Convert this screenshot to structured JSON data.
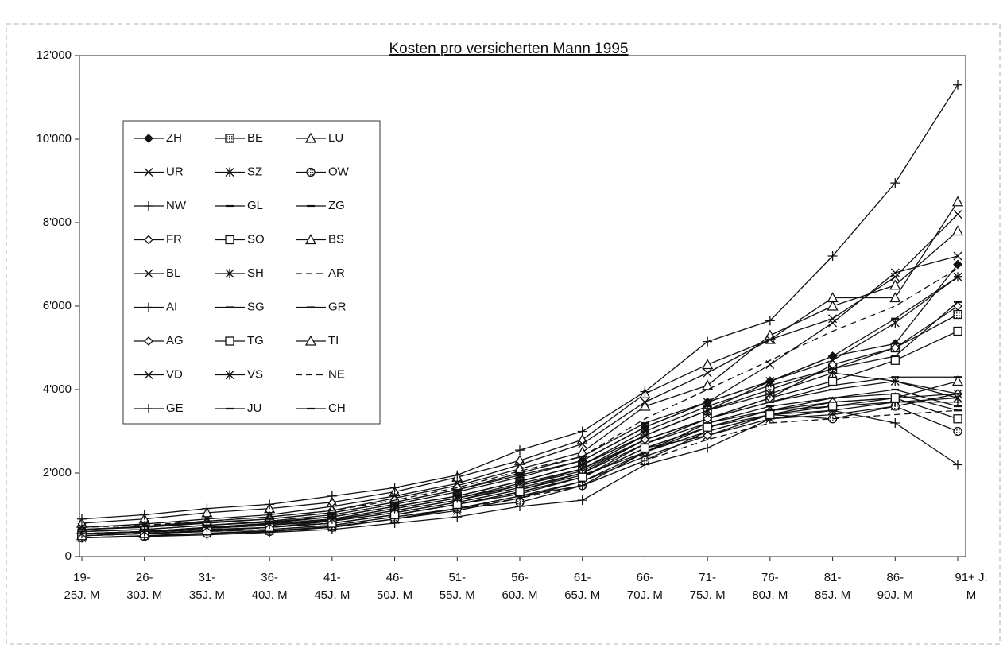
{
  "chart_data": {
    "type": "line",
    "title": "Kosten pro versicherten Mann 1995",
    "categories": [
      "19- 25J. M",
      "26- 30J. M",
      "31- 35J. M",
      "36- 40J. M",
      "41- 45J. M",
      "46- 50J. M",
      "51- 55J. M",
      "56- 60J. M",
      "61- 65J. M",
      "66- 70J. M",
      "71- 75J. M",
      "76- 80J. M",
      "81- 85J. M",
      "86- 90J. M",
      "91+ J. M"
    ],
    "ylim": [
      0,
      12000
    ],
    "yticks": [
      0,
      {
        "value": 2000,
        "label": "2'000"
      },
      {
        "value": 4000,
        "label": "4'000"
      },
      {
        "value": 6000,
        "label": "6'000"
      },
      {
        "value": 8000,
        "label": "8'000"
      },
      {
        "value": 10000,
        "label": "10'000"
      },
      {
        "value": 12000,
        "label": "12'000"
      }
    ],
    "series": [
      {
        "name": "ZH",
        "color": "#111",
        "marker": "diamond-filled",
        "values": [
          650,
          700,
          800,
          900,
          1050,
          1300,
          1600,
          1950,
          2300,
          3100,
          3700,
          4200,
          4800,
          5100,
          7000
        ]
      },
      {
        "name": "BE",
        "color": "#111",
        "marker": "square-hatched",
        "values": [
          550,
          600,
          700,
          800,
          950,
          1200,
          1450,
          1800,
          2200,
          2900,
          3500,
          4000,
          4500,
          5000,
          5800
        ]
      },
      {
        "name": "LU",
        "color": "#111",
        "marker": "triangle",
        "values": [
          500,
          550,
          620,
          700,
          850,
          1050,
          1300,
          1600,
          1950,
          2500,
          3200,
          3500,
          3700,
          3800,
          4200
        ]
      },
      {
        "name": "UR",
        "color": "#111",
        "marker": "x",
        "values": [
          450,
          500,
          550,
          620,
          700,
          900,
          1100,
          1400,
          1800,
          2400,
          2900,
          3300,
          3400,
          3600,
          3900
        ]
      },
      {
        "name": "SZ",
        "color": "#111",
        "marker": "star",
        "values": [
          450,
          500,
          560,
          620,
          720,
          900,
          1150,
          1450,
          1800,
          2500,
          3000,
          3400,
          3500,
          3700,
          3800
        ]
      },
      {
        "name": "OW",
        "color": "#111",
        "marker": "circle-hatched",
        "values": [
          450,
          480,
          550,
          600,
          700,
          900,
          1150,
          1300,
          1700,
          2300,
          3000,
          3400,
          3300,
          3600,
          3000
        ]
      },
      {
        "name": "NW",
        "color": "#111",
        "marker": "plus",
        "values": [
          500,
          550,
          600,
          650,
          750,
          950,
          1150,
          1450,
          1700,
          2500,
          3100,
          3500,
          3600,
          3700,
          3700
        ]
      },
      {
        "name": "GL",
        "color": "#111",
        "marker": "dash",
        "values": [
          550,
          580,
          650,
          700,
          800,
          1000,
          1250,
          1500,
          1900,
          2700,
          3200,
          3600,
          3800,
          4000,
          3600
        ]
      },
      {
        "name": "ZG",
        "color": "#111",
        "marker": "dash",
        "values": [
          550,
          600,
          680,
          750,
          850,
          1050,
          1300,
          1600,
          2000,
          2700,
          3300,
          3700,
          4100,
          4300,
          4300
        ]
      },
      {
        "name": "FR",
        "color": "#111",
        "marker": "diamond-open",
        "values": [
          500,
          550,
          620,
          700,
          800,
          1000,
          1250,
          1550,
          1900,
          2600,
          2900,
          3400,
          3700,
          3800,
          3900
        ]
      },
      {
        "name": "SO",
        "color": "#111",
        "marker": "square-open",
        "values": [
          550,
          600,
          700,
          780,
          900,
          1150,
          1400,
          1700,
          2100,
          2800,
          3300,
          3800,
          4200,
          4700,
          5400
        ]
      },
      {
        "name": "BS",
        "color": "#111",
        "marker": "triangle",
        "values": [
          800,
          900,
          1050,
          1150,
          1300,
          1550,
          1900,
          2300,
          2800,
          3900,
          4600,
          5200,
          6200,
          6200,
          8500
        ]
      },
      {
        "name": "BL",
        "color": "#111",
        "marker": "x",
        "values": [
          600,
          650,
          750,
          850,
          1000,
          1250,
          1550,
          1900,
          2300,
          3100,
          3700,
          4600,
          5600,
          6800,
          7200
        ]
      },
      {
        "name": "SH",
        "color": "#111",
        "marker": "star",
        "values": [
          600,
          650,
          750,
          830,
          950,
          1200,
          1450,
          1800,
          2200,
          2900,
          3500,
          4200,
          4700,
          5600,
          6700
        ]
      },
      {
        "name": "AR",
        "color": "#111",
        "marker": "none",
        "dashed": true,
        "values": [
          500,
          550,
          600,
          650,
          750,
          950,
          1150,
          1400,
          1700,
          2300,
          2800,
          3200,
          3300,
          3400,
          3500
        ]
      },
      {
        "name": "AI",
        "color": "#111",
        "marker": "plus",
        "values": [
          450,
          480,
          520,
          580,
          650,
          800,
          950,
          1200,
          1350,
          2200,
          2600,
          3300,
          3500,
          3200,
          2200
        ]
      },
      {
        "name": "SG",
        "color": "#111",
        "marker": "dash",
        "values": [
          500,
          550,
          620,
          700,
          800,
          1000,
          1250,
          1550,
          1900,
          2600,
          3100,
          3500,
          3800,
          3900,
          3500
        ]
      },
      {
        "name": "GR",
        "color": "#111",
        "marker": "dash",
        "values": [
          550,
          600,
          680,
          750,
          880,
          1100,
          1350,
          1650,
          2000,
          2800,
          3300,
          3700,
          4000,
          4200,
          3900
        ]
      },
      {
        "name": "AG",
        "color": "#111",
        "marker": "diamond-open",
        "values": [
          550,
          600,
          680,
          750,
          870,
          1100,
          1350,
          1700,
          2050,
          2800,
          3300,
          3800,
          4600,
          5000,
          6000
        ]
      },
      {
        "name": "TG",
        "color": "#111",
        "marker": "square-open",
        "values": [
          500,
          550,
          620,
          700,
          800,
          1000,
          1250,
          1550,
          1900,
          2600,
          3100,
          3400,
          3600,
          3800,
          3300
        ]
      },
      {
        "name": "TI",
        "color": "#111",
        "marker": "triangle",
        "values": [
          650,
          720,
          850,
          950,
          1100,
          1400,
          1700,
          2100,
          2500,
          3600,
          4100,
          5300,
          6000,
          6500,
          7800
        ]
      },
      {
        "name": "VD",
        "color": "#111",
        "marker": "x",
        "values": [
          700,
          780,
          900,
          1000,
          1200,
          1450,
          1750,
          2200,
          2700,
          3700,
          4400,
          5200,
          5700,
          6700,
          8200
        ]
      },
      {
        "name": "VS",
        "color": "#111",
        "marker": "star",
        "values": [
          550,
          600,
          700,
          780,
          900,
          1150,
          1400,
          1750,
          2100,
          2900,
          3500,
          3900,
          4400,
          4200,
          3800
        ]
      },
      {
        "name": "NE",
        "color": "#111",
        "marker": "none",
        "dashed": true,
        "values": [
          700,
          750,
          850,
          950,
          1100,
          1350,
          1650,
          2050,
          2400,
          3300,
          4000,
          4700,
          5400,
          6000,
          6900
        ]
      },
      {
        "name": "GE",
        "color": "#111",
        "marker": "plus",
        "values": [
          900,
          1000,
          1150,
          1250,
          1450,
          1650,
          1950,
          2550,
          3000,
          3950,
          5150,
          5650,
          7200,
          8950,
          11300
        ]
      },
      {
        "name": "JU",
        "color": "#111",
        "marker": "dash",
        "values": [
          600,
          650,
          750,
          830,
          950,
          1200,
          1450,
          1800,
          2200,
          3000,
          3600,
          4100,
          4500,
          4800,
          6100
        ]
      },
      {
        "name": "CH",
        "color": "#111",
        "marker": "dash",
        "values": [
          650,
          720,
          820,
          900,
          1050,
          1300,
          1600,
          2000,
          2400,
          3200,
          3700,
          4200,
          4800,
          5700,
          6700
        ]
      }
    ],
    "legend": {
      "columns": 3
    },
    "grid": false
  }
}
